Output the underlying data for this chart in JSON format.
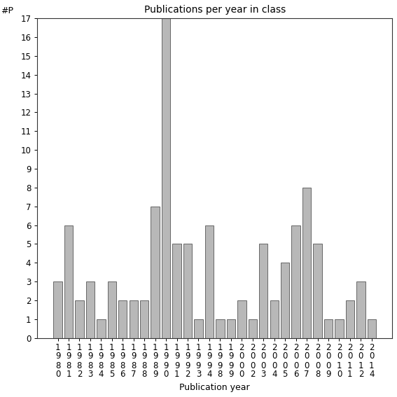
{
  "years": [
    "1980",
    "1981",
    "1982",
    "1983",
    "1984",
    "1985",
    "1986",
    "1987",
    "1988",
    "1989",
    "1990",
    "1991",
    "1992",
    "1993",
    "1994",
    "1998",
    "1999",
    "2000",
    "2002",
    "2003",
    "2004",
    "2005",
    "2006",
    "2007",
    "2008",
    "2009",
    "2010",
    "2011",
    "2012",
    "2014"
  ],
  "values": [
    3,
    6,
    2,
    3,
    1,
    3,
    2,
    2,
    2,
    7,
    17,
    5,
    5,
    1,
    6,
    1,
    1,
    2,
    1,
    5,
    2,
    4,
    6,
    8,
    5,
    1,
    1,
    2,
    3,
    1
  ],
  "title": "Publications per year in class",
  "xlabel": "Publication year",
  "ylabel": "#P",
  "bar_color": "#b8b8b8",
  "bar_edgecolor": "#555555",
  "ylim": [
    0,
    17
  ],
  "yticks": [
    0,
    1,
    2,
    3,
    4,
    5,
    6,
    7,
    8,
    9,
    10,
    11,
    12,
    13,
    14,
    15,
    16,
    17
  ],
  "bg_color": "#ffffff",
  "title_fontsize": 10,
  "label_fontsize": 9,
  "tick_fontsize": 8.5
}
